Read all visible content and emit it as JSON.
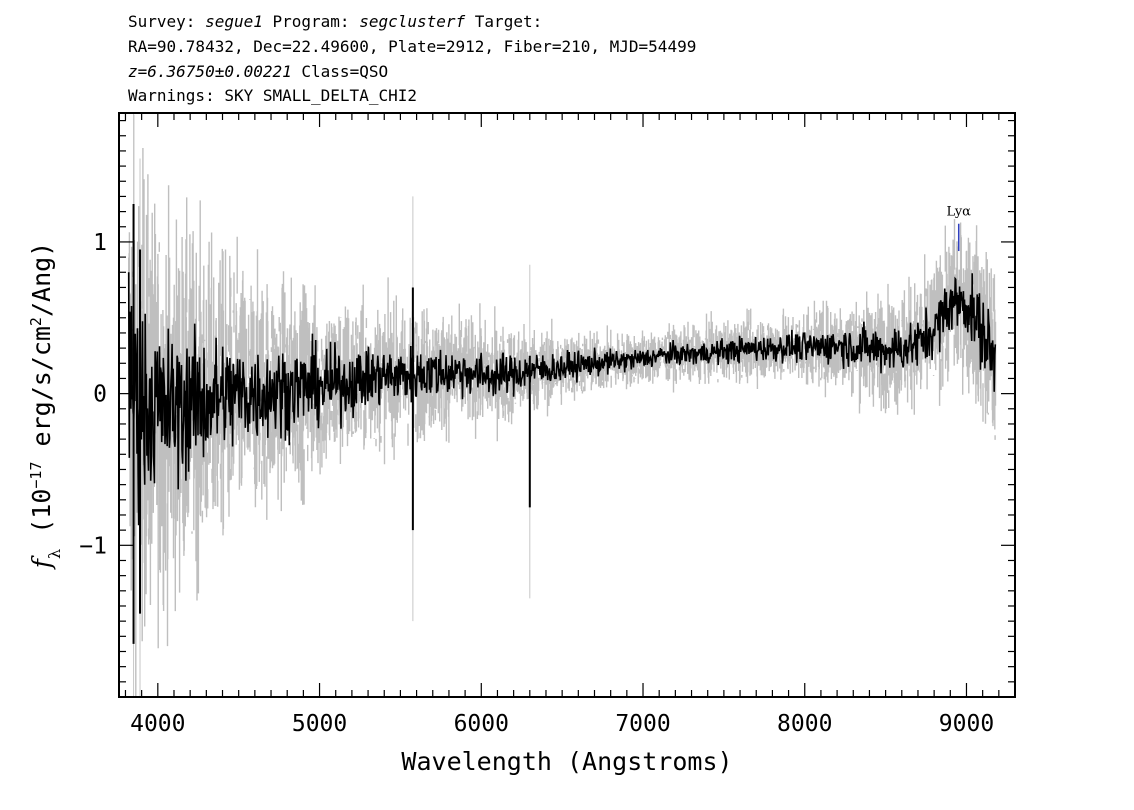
{
  "header": {
    "line1": {
      "survey_label": "Survey: ",
      "survey": "segue1",
      "program_label": " Program: ",
      "program": "segclusterf",
      "target_label": " Target:"
    },
    "line2": "RA=90.78432, Dec=22.49600, Plate=2912, Fiber=210, MJD=54499",
    "line3": {
      "redshift": "z=6.36750±0.00221",
      "class_text": " Class=QSO"
    },
    "line4": "Warnings: SKY SMALL_DELTA_CHI2"
  },
  "chart_data": {
    "type": "line",
    "xlabel": "Wavelength (Angstroms)",
    "ylabel": "f_λ (10^-17 erg/s/cm^2/Ang)",
    "xlim": [
      3760,
      9300
    ],
    "ylim": [
      -2.0,
      1.85
    ],
    "x_ticks": [
      4000,
      5000,
      6000,
      7000,
      8000,
      9000
    ],
    "x_tick_labels": [
      "4000",
      "5000",
      "6000",
      "7000",
      "8000",
      "9000"
    ],
    "y_ticks": [
      -1,
      0,
      1
    ],
    "y_tick_labels": [
      "−1",
      "0",
      "1"
    ],
    "grid": false,
    "series": [
      {
        "role": "flux",
        "color": "#000000",
        "x": [
          3820,
          3900,
          4000,
          4100,
          4200,
          4300,
          4400,
          4500,
          4600,
          4700,
          4800,
          4900,
          5000,
          5100,
          5200,
          5300,
          5400,
          5500,
          5600,
          5700,
          5800,
          5900,
          6000,
          6100,
          6200,
          6300,
          6400,
          6500,
          6600,
          6700,
          6800,
          6900,
          7000,
          7100,
          7200,
          7300,
          7400,
          7500,
          7600,
          7700,
          7800,
          7900,
          8000,
          8100,
          8200,
          8300,
          8400,
          8500,
          8600,
          8700,
          8800,
          8900,
          9000,
          9100,
          9180
        ],
        "y": [
          0.05,
          -0.05,
          -0.1,
          -0.1,
          -0.05,
          -0.05,
          -0.02,
          0.0,
          0.0,
          0.02,
          0.03,
          0.05,
          0.05,
          0.06,
          0.08,
          0.1,
          0.12,
          0.12,
          0.13,
          0.14,
          0.14,
          0.15,
          0.12,
          0.12,
          0.13,
          0.15,
          0.16,
          0.17,
          0.19,
          0.2,
          0.21,
          0.22,
          0.23,
          0.25,
          0.26,
          0.26,
          0.27,
          0.28,
          0.29,
          0.3,
          0.3,
          0.31,
          0.3,
          0.31,
          0.32,
          0.31,
          0.3,
          0.29,
          0.3,
          0.33,
          0.42,
          0.6,
          0.6,
          0.4,
          0.2
        ]
      },
      {
        "role": "error",
        "color": "#bfbfbf",
        "x": [
          3820,
          4000,
          4200,
          4400,
          4600,
          4800,
          5000,
          5200,
          5400,
          5600,
          5800,
          6000,
          6200,
          6400,
          6600,
          6800,
          7000,
          7200,
          7400,
          7600,
          7800,
          8000,
          8200,
          8400,
          8600,
          8800,
          9000,
          9180
        ],
        "y": [
          1.2,
          0.9,
          0.78,
          0.65,
          0.55,
          0.48,
          0.42,
          0.36,
          0.32,
          0.3,
          0.27,
          0.24,
          0.22,
          0.18,
          0.15,
          0.13,
          0.12,
          0.12,
          0.13,
          0.14,
          0.15,
          0.17,
          0.2,
          0.24,
          0.27,
          0.3,
          0.36,
          0.45
        ]
      }
    ],
    "features": [
      {
        "x": 5577,
        "y_min": -0.9,
        "y_max": 0.7
      },
      {
        "x": 6300,
        "y_min": -0.75,
        "y_max": 0.25
      },
      {
        "x": 3850,
        "y_min": -1.65,
        "y_max": 1.25
      },
      {
        "x": 3890,
        "y_min": -1.45,
        "y_max": 0.95
      }
    ],
    "annotations": [
      {
        "label": "Lyα",
        "x": 8952,
        "y_top": 1.12,
        "y_bottom": 0.94,
        "color": "#3040c0"
      }
    ]
  }
}
